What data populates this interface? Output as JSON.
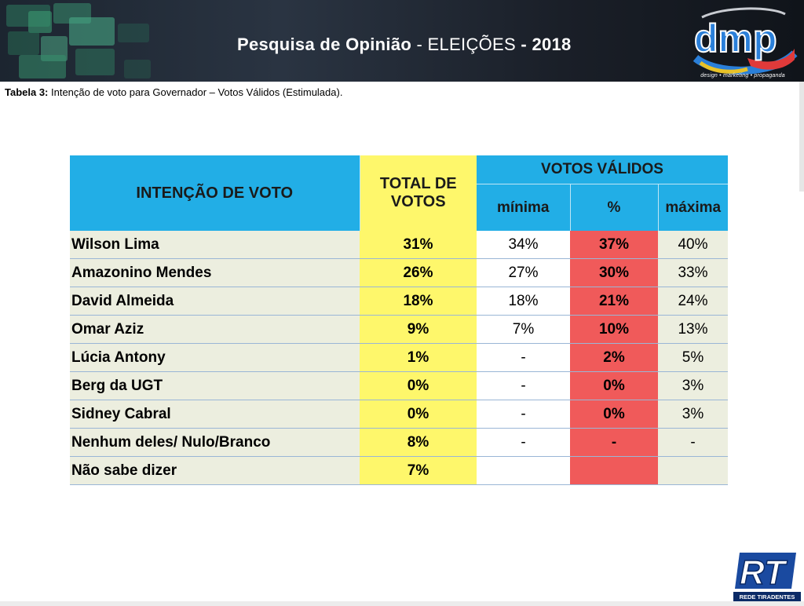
{
  "header": {
    "title_part1": "Pesquisa de Opinião",
    "title_sep1": " - ",
    "title_part2": "ELEIÇÕES",
    "title_sep2": " - ",
    "title_year": "2018",
    "logo_text": "dmp",
    "logo_tagline": "design • marketing • propaganda"
  },
  "caption": {
    "label": "Tabela 3:",
    "text": " Intenção de voto para Governador – Votos Válidos (Estimulada)."
  },
  "table": {
    "col_intencao": "INTENÇÃO DE VOTO",
    "col_total_line1": "TOTAL DE",
    "col_total_line2": "VOTOS",
    "col_votos_validos": "VOTOS VÁLIDOS",
    "col_minima": "mínima",
    "col_pct": "%",
    "col_maxima": "máxima",
    "rows": [
      {
        "name": "Wilson Lima",
        "total": "31%",
        "min": "34%",
        "pct": "37%",
        "max": "40%"
      },
      {
        "name": "Amazonino Mendes",
        "total": "26%",
        "min": "27%",
        "pct": "30%",
        "max": "33%"
      },
      {
        "name": "David Almeida",
        "total": "18%",
        "min": "18%",
        "pct": "21%",
        "max": "24%"
      },
      {
        "name": "Omar Aziz",
        "total": "9%",
        "min": "7%",
        "pct": "10%",
        "max": "13%"
      },
      {
        "name": "Lúcia Antony",
        "total": "1%",
        "min": "-",
        "pct": "2%",
        "max": "5%"
      },
      {
        "name": "Berg da UGT",
        "total": "0%",
        "min": "-",
        "pct": "0%",
        "max": "3%"
      },
      {
        "name": "Sidney Cabral",
        "total": "0%",
        "min": "-",
        "pct": "0%",
        "max": "3%"
      },
      {
        "name": "Nenhum deles/ Nulo/Branco",
        "total": "8%",
        "min": "-",
        "pct": "-",
        "max": "-"
      },
      {
        "name": "Não sabe dizer",
        "total": "7%",
        "min": "",
        "pct": "",
        "max": ""
      }
    ]
  },
  "footer": {
    "rt_logo_text": "RT",
    "rt_logo_tagline": "REDE TIRADENTES"
  },
  "colors": {
    "header_blue": "#22aee6",
    "total_yellow": "#fef76b",
    "pct_red": "#f05a5a",
    "row_beige": "#eceedf"
  }
}
